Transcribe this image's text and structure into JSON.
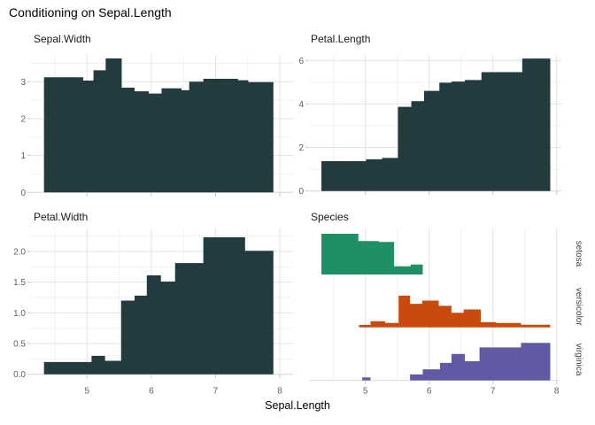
{
  "title": "Conditioning on Sepal.Length",
  "xlabel": "Sepal.Length",
  "colors": {
    "bar_dark": "#233B3E",
    "setosa": "#1F9065",
    "versicolor": "#C94A0C",
    "virginica": "#605AA4",
    "grid_major": "#E3E3E3",
    "grid_minor": "#F0F0F0",
    "axis_line": "#DBDBDB",
    "tick_mark": "#C6C6C6",
    "tick_label": "#5E5E5E",
    "strip_label": "#444444",
    "text": "#111111"
  },
  "chart_data": [
    {
      "id": "sepal-width",
      "type": "area",
      "title": "Sepal.Width",
      "color_key": "bar_dark",
      "x_edges": [
        4.33,
        4.94,
        5.1,
        5.29,
        5.54,
        5.74,
        5.96,
        6.16,
        6.47,
        6.59,
        6.81,
        7.35,
        7.51,
        7.9
      ],
      "values": [
        3.12,
        3.03,
        3.31,
        3.63,
        2.84,
        2.74,
        2.68,
        2.82,
        2.77,
        3.0,
        3.08,
        3.04,
        2.99
      ],
      "xlim": [
        4.12,
        8.2
      ],
      "ylim": [
        0,
        3.73
      ],
      "xticks": [
        5,
        6,
        7,
        8
      ],
      "xminor": [
        4.5,
        5.5,
        6.5,
        7.5
      ],
      "yticks": [
        0,
        1,
        2,
        3
      ],
      "ytick_labels": [
        "0",
        "1",
        "2",
        "3"
      ],
      "yminor": [
        0.5,
        1.5,
        2.5,
        3.5
      ],
      "xtick_labels": null
    },
    {
      "id": "petal-length",
      "type": "area",
      "title": "Petal.Length",
      "color_key": "bar_dark",
      "x_edges": [
        4.31,
        5.01,
        5.26,
        5.51,
        5.72,
        5.92,
        6.16,
        6.35,
        6.56,
        6.82,
        7.46,
        7.9
      ],
      "values": [
        1.37,
        1.46,
        1.52,
        3.87,
        4.13,
        4.6,
        4.98,
        5.03,
        5.1,
        5.46,
        6.09
      ],
      "xlim": [
        4.12,
        8.07
      ],
      "ylim": [
        0,
        6.26
      ],
      "xticks": [
        5,
        6,
        7,
        8
      ],
      "xminor": [
        4.5,
        5.5,
        6.5,
        7.5
      ],
      "yticks": [
        0,
        2,
        4,
        6
      ],
      "ytick_labels": [
        "0",
        "2",
        "4",
        "6"
      ],
      "yminor": [
        1,
        3,
        5
      ],
      "xtick_labels": null
    },
    {
      "id": "petal-width",
      "type": "area",
      "title": "Petal.Width",
      "color_key": "bar_dark",
      "x_edges": [
        4.33,
        5.07,
        5.28,
        5.53,
        5.74,
        5.93,
        6.15,
        6.37,
        6.81,
        7.46,
        7.9
      ],
      "values": [
        0.2,
        0.3,
        0.22,
        1.2,
        1.28,
        1.61,
        1.51,
        1.81,
        2.23,
        2.01
      ],
      "xlim": [
        4.12,
        8.2
      ],
      "ylim": [
        0,
        2.38
      ],
      "xticks": [
        5,
        6,
        7,
        8
      ],
      "xminor": [
        4.5,
        5.5,
        6.5,
        7.5
      ],
      "yticks": [
        0,
        0.5,
        1,
        1.5,
        2
      ],
      "ytick_labels": [
        "0.0",
        "0.5",
        "1.0",
        "1.5",
        "2.0"
      ],
      "yminor": [
        0.25,
        0.75,
        1.25,
        1.75,
        2.25
      ],
      "xtick_labels": [
        "5",
        "6",
        "7",
        "8"
      ]
    },
    {
      "id": "species",
      "type": "faceted-area",
      "title": "Species",
      "xlim": [
        4.12,
        8.03
      ],
      "ylim": [
        0,
        1.05
      ],
      "xticks": [
        5,
        6,
        7,
        8
      ],
      "xminor": [
        4.5,
        5.5,
        6.5,
        7.5
      ],
      "xtick_labels": [
        "5",
        "6",
        "7",
        "8"
      ],
      "facets": [
        {
          "label": "setosa",
          "color_key": "setosa",
          "x_edges": [
            4.31,
            4.89,
            5.21,
            5.45,
            5.71,
            5.9
          ],
          "values": [
            1.0,
            0.82,
            0.8,
            0.2,
            0.245
          ]
        },
        {
          "label": "versicolor",
          "color_key": "versicolor",
          "x_edges": [
            4.9,
            5.08,
            5.31,
            5.52,
            5.7,
            5.89,
            6.15,
            6.35,
            6.54,
            6.81,
            7.05,
            7.44,
            7.9
          ],
          "values": [
            0.06,
            0.15,
            0.11,
            0.78,
            0.58,
            0.66,
            0.53,
            0.36,
            0.44,
            0.13,
            0.11,
            0.065
          ]
        },
        {
          "label": "virginica",
          "color_key": "virginica",
          "x_edges": [
            4.95,
            5.08,
            5.7,
            5.9,
            6.17,
            6.35,
            6.56,
            6.79,
            7.44,
            7.9
          ],
          "values": [
            0.072,
            0,
            0.145,
            0.27,
            0.43,
            0.65,
            0.47,
            0.81,
            0.92
          ]
        }
      ]
    }
  ]
}
